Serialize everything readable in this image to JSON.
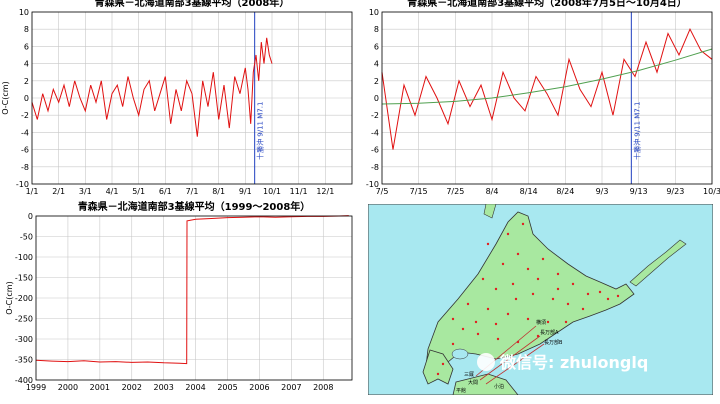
{
  "chart_data": [
    {
      "type": "line",
      "title": "青森県－北海道南部3基線平均（2008年）",
      "ylabel": "O-C(cm)",
      "ylim": [
        -10,
        10
      ],
      "xlim": [
        0,
        12
      ],
      "x_ticks": [
        "1/1",
        "2/1",
        "3/1",
        "4/1",
        "5/1",
        "6/1",
        "7/1",
        "8/1",
        "9/1",
        "10/1",
        "11/1",
        "12/1"
      ],
      "y_ticks": [
        "10",
        "8",
        "6",
        "4",
        "2",
        "0",
        "-2",
        "-4",
        "-6",
        "-8",
        "-10"
      ],
      "event_x": 8.35,
      "event_label": "十勝沖 9/11 M7.1",
      "series": [
        {
          "color": "#e01010",
          "x": [
            0,
            0.2,
            0.4,
            0.6,
            0.8,
            1,
            1.2,
            1.4,
            1.6,
            1.8,
            2,
            2.2,
            2.4,
            2.6,
            2.8,
            3,
            3.2,
            3.4,
            3.6,
            3.8,
            4,
            4.2,
            4.4,
            4.6,
            4.8,
            5,
            5.2,
            5.4,
            5.6,
            5.8,
            6,
            6.2,
            6.4,
            6.6,
            6.8,
            7,
            7.2,
            7.4,
            7.6,
            7.8,
            8,
            8.1,
            8.2,
            8.3,
            8.4,
            8.5,
            8.6,
            8.7,
            8.8,
            8.9,
            9.0
          ],
          "y": [
            -0.5,
            -2.5,
            0.5,
            -1.5,
            1.0,
            -0.5,
            1.5,
            -1.0,
            2.0,
            0.0,
            -1.5,
            1.5,
            -0.5,
            2.0,
            -2.5,
            0.5,
            1.5,
            -1.0,
            2.5,
            0.0,
            -2.0,
            1.0,
            2.0,
            -1.5,
            0.5,
            2.5,
            -3.0,
            1.0,
            -1.5,
            2.0,
            0.5,
            -4.5,
            2.0,
            -1.0,
            3.0,
            -2.5,
            1.5,
            -3.5,
            2.5,
            0.5,
            3.5,
            1.0,
            -3.0,
            3.0,
            5.0,
            2.0,
            6.5,
            4.0,
            7.0,
            5.0,
            4.0
          ]
        }
      ]
    },
    {
      "type": "line",
      "title": "青森県－北海道南部3基線平均（2008年7月5日～10月4日）",
      "ylabel": "O-C(cm)",
      "ylim": [
        -10,
        10
      ],
      "xlim": [
        0,
        9
      ],
      "x_ticks": [
        "7/5",
        "7/15",
        "7/25",
        "8/4",
        "8/14",
        "8/24",
        "9/3",
        "9/13",
        "9/23",
        "10/3"
      ],
      "y_ticks": [
        "10",
        "8",
        "6",
        "4",
        "2",
        "0",
        "-2",
        "-4",
        "-6",
        "-8",
        "-10"
      ],
      "event_x": 6.8,
      "event_label": "十勝沖 9/11 M7.1",
      "series": [
        {
          "color": "#e01010",
          "x": [
            0,
            0.3,
            0.6,
            0.9,
            1.2,
            1.5,
            1.8,
            2.1,
            2.4,
            2.7,
            3.0,
            3.3,
            3.6,
            3.9,
            4.2,
            4.5,
            4.8,
            5.1,
            5.4,
            5.7,
            6.0,
            6.3,
            6.6,
            6.9,
            7.2,
            7.5,
            7.8,
            8.1,
            8.4,
            8.7,
            9.0
          ],
          "y": [
            3.0,
            -6.0,
            1.5,
            -2.0,
            2.5,
            0.0,
            -3.0,
            2.0,
            -1.0,
            1.5,
            -2.5,
            3.0,
            0.0,
            -1.5,
            2.5,
            0.5,
            -2.0,
            4.5,
            1.0,
            -1.0,
            3.0,
            -2.0,
            4.5,
            2.5,
            6.5,
            3.0,
            7.5,
            5.0,
            8.0,
            5.5,
            4.5
          ]
        },
        {
          "color": "#50a050",
          "x": [
            0,
            1,
            2,
            3,
            4,
            5,
            6,
            7,
            8,
            9
          ],
          "y": [
            -0.7,
            -0.6,
            -0.4,
            0.0,
            0.6,
            1.3,
            2.2,
            3.2,
            4.4,
            5.7
          ]
        }
      ]
    },
    {
      "type": "line",
      "title": "青森県－北海道南部3基線平均（1999～2008年）",
      "ylabel": "O-C(cm)",
      "ylim": [
        -400,
        0
      ],
      "xlim": [
        1999,
        2008.9
      ],
      "x_ticks": [
        "1999",
        "2000",
        "2001",
        "2002",
        "2003",
        "2004",
        "2005",
        "2006",
        "2007",
        "2008"
      ],
      "y_ticks": [
        "0",
        "-50",
        "-100",
        "-150",
        "-200",
        "-250",
        "-300",
        "-350",
        "-400"
      ],
      "series": [
        {
          "color": "#e01010",
          "x": [
            1999.0,
            1999.5,
            2000.0,
            2000.5,
            2001.0,
            2001.5,
            2002.0,
            2002.5,
            2003.0,
            2003.5,
            2003.72,
            2003.73,
            2004.0,
            2004.5,
            2005.0,
            2005.5,
            2006.0,
            2006.5,
            2007.0,
            2007.5,
            2008.0,
            2008.5,
            2008.8
          ],
          "y": [
            -352,
            -354,
            -355,
            -353,
            -356,
            -355,
            -357,
            -356,
            -358,
            -359,
            -360,
            -12,
            -8,
            -6,
            -4,
            -3,
            -2,
            -3,
            -2,
            -1,
            -1,
            0,
            1
          ]
        }
      ]
    }
  ],
  "map": {
    "label_1": "横須",
    "label_2": "長万部A",
    "label_3": "長万部B",
    "label_4": "三厩",
    "label_5": "大間",
    "label_6": "小泊",
    "bottom_label": "平館",
    "watermark": "微信号: zhulonglq"
  },
  "colors": {
    "series_red": "#e01010",
    "trend_green": "#50a050",
    "event_line": "#2040c0",
    "sea": "#a8e8f0",
    "land": "#a8e8a0"
  }
}
